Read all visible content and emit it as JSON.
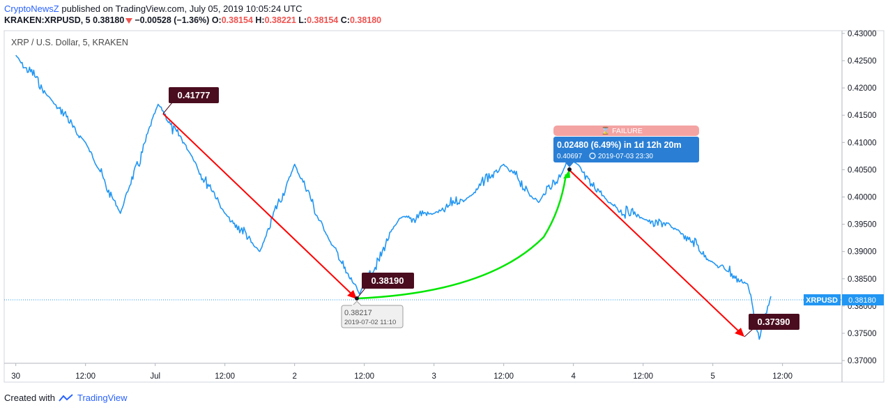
{
  "header": {
    "author": "CryptoNewsZ",
    "published_text": "published on TradingView.com, July 05, 2019 10:05:24 UTC",
    "symbol_info": "KRAKEN:XRPUSD, 5",
    "last_price": "0.38180",
    "change": "−0.00528 (−1.36%)",
    "o_label": "O:",
    "o_value": "0.38154",
    "h_label": "H:",
    "h_value": "0.38221",
    "l_label": "L:",
    "l_value": "0.38154",
    "c_label": "C:",
    "c_value": "0.38180"
  },
  "legend": {
    "text": "XRP / U.S. Dollar, 5, KRAKEN"
  },
  "footer": {
    "created_with": "Created with",
    "brand": "TradingView"
  },
  "colors": {
    "line": "#2196f3",
    "down_arrow": "#ff0000",
    "up_curve": "#00e600",
    "label_bg": "#4a0d1f",
    "price_tag": "#2196f3",
    "failure_bg": "#f4a3a3",
    "measure_bg": "#2a7fd5",
    "accent_blue": "#2962ff"
  },
  "annotations": {
    "high_label": "0.41777",
    "low_label_1": "0.38190",
    "low_label_2": "0.37390",
    "low_tip_price": "0.38217",
    "low_tip_time": "2019-07-02 11:10",
    "failure_text": "⌛ FAILURE",
    "measure_main": "0.02480 (6.49%) in 1d 12h 20m",
    "measure_sub_price": "0.40697",
    "measure_sub_time": "2019-07-03  23:30",
    "current_price_symbol": "XRPUSD",
    "current_price_value": "0.38180"
  },
  "chart_data": {
    "type": "line",
    "series": [
      {
        "name": "XRPUSD",
        "x": [
          "06-30 00:00",
          "06-30 06:00",
          "06-30 12:00",
          "06-30 18:00",
          "07-01 00:30",
          "07-01 06:00",
          "07-01 12:00",
          "07-01 18:00",
          "07-02 00:00",
          "07-02 06:00",
          "07-02 11:10",
          "07-02 18:00",
          "07-03 00:00",
          "07-03 06:00",
          "07-03 12:00",
          "07-03 18:00",
          "07-03 23:30",
          "07-04 06:00",
          "07-04 12:00",
          "07-04 18:00",
          "07-05 00:00",
          "07-05 06:00",
          "07-05 08:00",
          "07-05 10:00"
        ],
        "values": [
          0.426,
          0.418,
          0.41,
          0.397,
          0.417,
          0.408,
          0.397,
          0.39,
          0.406,
          0.392,
          0.3822,
          0.396,
          0.397,
          0.4,
          0.406,
          0.399,
          0.407,
          0.399,
          0.396,
          0.394,
          0.388,
          0.384,
          0.3739,
          0.3818
        ]
      }
    ],
    "x_ticks": [
      "30",
      "12:00",
      "Jul",
      "12:00",
      "2",
      "12:00",
      "3",
      "12:00",
      "4",
      "12:00",
      "5",
      "12:00"
    ],
    "y_ticks": [
      "0.43000",
      "0.42500",
      "0.42000",
      "0.41500",
      "0.41000",
      "0.40500",
      "0.40000",
      "0.39500",
      "0.39000",
      "0.38500",
      "0.38000",
      "0.37500",
      "0.37000"
    ],
    "ylim": [
      0.3695,
      0.4305
    ],
    "grid": false
  }
}
